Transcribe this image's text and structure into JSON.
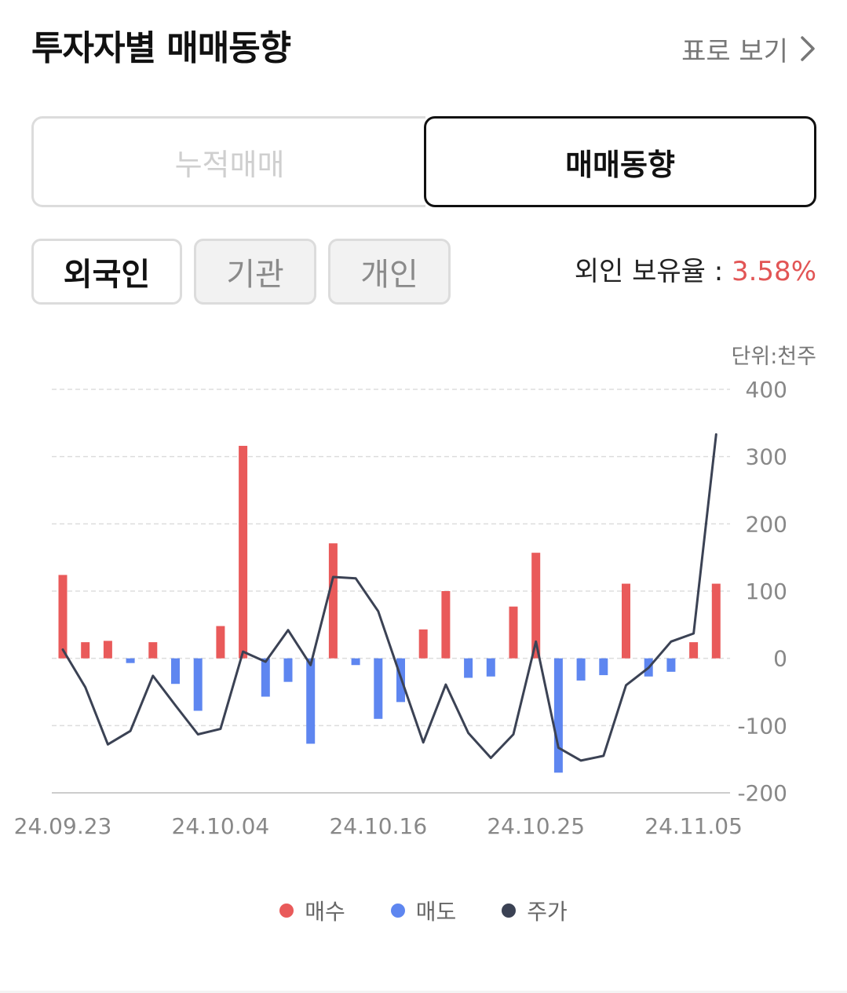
{
  "header": {
    "title": "투자자별 매매동향",
    "table_link": "표로 보기"
  },
  "segment": {
    "left_label": "누적매매",
    "right_label": "매매동향",
    "selected": "매매동향"
  },
  "investors": {
    "items": [
      "외국인",
      "기관",
      "개인"
    ],
    "selected": "외국인"
  },
  "holding": {
    "label": "외인 보유율 : ",
    "value": "3.58%"
  },
  "unit_label": "단위:천주",
  "legend": {
    "buy": "매수",
    "sell": "매도",
    "price": "주가"
  },
  "colors": {
    "buy": "#E95A5A",
    "sell": "#5E86F0",
    "price": "#3B4254",
    "grid": "#dddddd",
    "axis_text": "#888888"
  },
  "icons": {
    "table_link": "chevron-right-icon"
  },
  "chart_data": {
    "type": "bar",
    "ylabel": "",
    "ylim": [
      -200,
      400
    ],
    "yticks": [
      400,
      300,
      200,
      100,
      0,
      -100,
      -200
    ],
    "x_tick_labels": [
      {
        "index": 0,
        "label": "24.09.23"
      },
      {
        "index": 7,
        "label": "24.10.04"
      },
      {
        "index": 14,
        "label": "24.10.16"
      },
      {
        "index": 21,
        "label": "24.10.25"
      },
      {
        "index": 28,
        "label": "24.11.05"
      }
    ],
    "grid": "horizontal-dashed",
    "legend_position": "bottom-center",
    "series": [
      {
        "name": "매수",
        "values": [
          124,
          24,
          26,
          0,
          24,
          0,
          0,
          48,
          316,
          0,
          0,
          0,
          171,
          0,
          0,
          0,
          43,
          100,
          0,
          0,
          77,
          157,
          0,
          0,
          0,
          111,
          0,
          0,
          24,
          111
        ]
      },
      {
        "name": "매도",
        "values": [
          0,
          0,
          0,
          -7,
          0,
          -38,
          -78,
          0,
          0,
          -57,
          -35,
          -127,
          0,
          -10,
          -90,
          -65,
          0,
          0,
          -29,
          -27,
          0,
          0,
          -170,
          -33,
          -25,
          0,
          -27,
          -20,
          0,
          0
        ]
      },
      {
        "name": "주가",
        "values": [
          13,
          -43,
          -128,
          -108,
          -26,
          -70,
          -113,
          -105,
          10,
          -5,
          42,
          -10,
          121,
          119,
          70,
          -28,
          -125,
          -39,
          -111,
          -148,
          -113,
          25,
          -133,
          -152,
          -145,
          -40,
          -14,
          25,
          37,
          333
        ]
      }
    ]
  }
}
